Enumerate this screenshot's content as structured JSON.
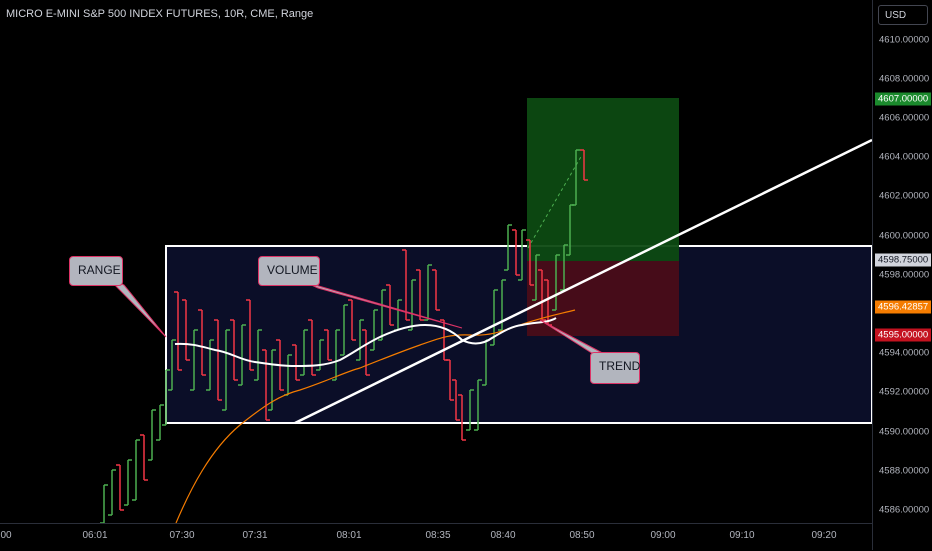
{
  "header": {
    "title": "MICRO E-MINI S&P 500 INDEX FUTURES, 10R, CME, Range"
  },
  "price_axis": {
    "currency": "USD",
    "ticks": [
      "4610.00000",
      "4608.00000",
      "4606.00000",
      "4604.00000",
      "4602.00000",
      "4600.00000",
      "4598.00000",
      "4594.00000",
      "4592.00000",
      "4590.00000",
      "4588.00000",
      "4586.00000"
    ],
    "labels": {
      "target": "4607.00000",
      "entry": "4598.75000",
      "current": "4596.42857",
      "stop": "4595.00000"
    }
  },
  "time_axis": {
    "ticks": [
      "00",
      "06:01",
      "07:30",
      "07:31",
      "08:01",
      "08:35",
      "08:40",
      "08:50",
      "09:00",
      "09:10",
      "09:20"
    ]
  },
  "annotations": {
    "range": "RANGE",
    "volume": "VOLUME",
    "trend": "TREND"
  },
  "colors": {
    "up": "#26a69a",
    "down": "#ef5350",
    "up_bar": "#4caf50",
    "down_bar": "#f23645",
    "ma_white": "#ffffff",
    "ma_orange": "#f57c00",
    "target_zone": "#0d5d0d",
    "stop_zone": "#5d0d16",
    "range_box": "#0b0e28"
  }
}
